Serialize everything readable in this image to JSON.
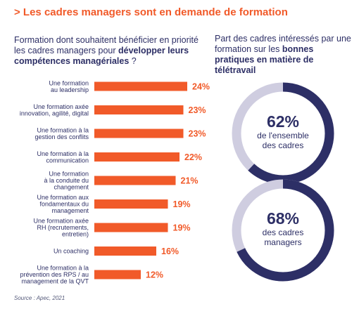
{
  "title": "> Les cadres managers sont en demande de formation",
  "left_heading": {
    "text_before": "Formation dont souhaitent bénéficier en priorité les cadres managers pour ",
    "text_bold": "développer leurs compétences managériales",
    "text_after": " ?"
  },
  "right_heading": {
    "text_before": "Part des cadres intéressés par une formation sur les ",
    "text_bold": "bonnes pratiques en matière de télétravail"
  },
  "colors": {
    "bar": "#f15a29",
    "value_text": "#f15a29",
    "text_navy": "#2d2f66",
    "donut_filled": "#2d2f66",
    "donut_track": "#cfcde0"
  },
  "chart_data": [
    {
      "type": "bar",
      "orientation": "horizontal",
      "title": "Formation dont souhaitent bénéficier en priorité les cadres managers pour développer leurs compétences managériales ?",
      "categories": [
        [
          "Une formation",
          "au leadership"
        ],
        [
          "Une formation axée",
          "innovation, agilité, digital"
        ],
        [
          "Une formation à la",
          "gestion des conflits"
        ],
        [
          "Une formation à la",
          "communication"
        ],
        [
          "Une formation",
          "à la conduite du",
          "changement"
        ],
        [
          "Une formation aux",
          "fondamentaux du",
          "management"
        ],
        [
          "Une formation axée",
          "RH (recrutements,",
          "entretien)"
        ],
        [
          "Un coaching"
        ],
        [
          "Une formation à la",
          "prévention des RPS / au",
          "management de la QVT"
        ]
      ],
      "values": [
        24,
        23,
        23,
        22,
        21,
        19,
        19,
        16,
        12
      ],
      "value_labels": [
        "24%",
        "23%",
        "23%",
        "22%",
        "21%",
        "19%",
        "19%",
        "16%",
        "12%"
      ],
      "unit": "%",
      "grid": false,
      "legend": false
    },
    {
      "type": "pie",
      "variant": "donut",
      "value": 62,
      "value_label": "62%",
      "label_lines": [
        "de l'ensemble",
        "des cadres"
      ]
    },
    {
      "type": "pie",
      "variant": "donut",
      "value": 68,
      "value_label": "68%",
      "label_lines": [
        "des cadres",
        "managers"
      ]
    }
  ],
  "source": "Source : Apec, 2021"
}
